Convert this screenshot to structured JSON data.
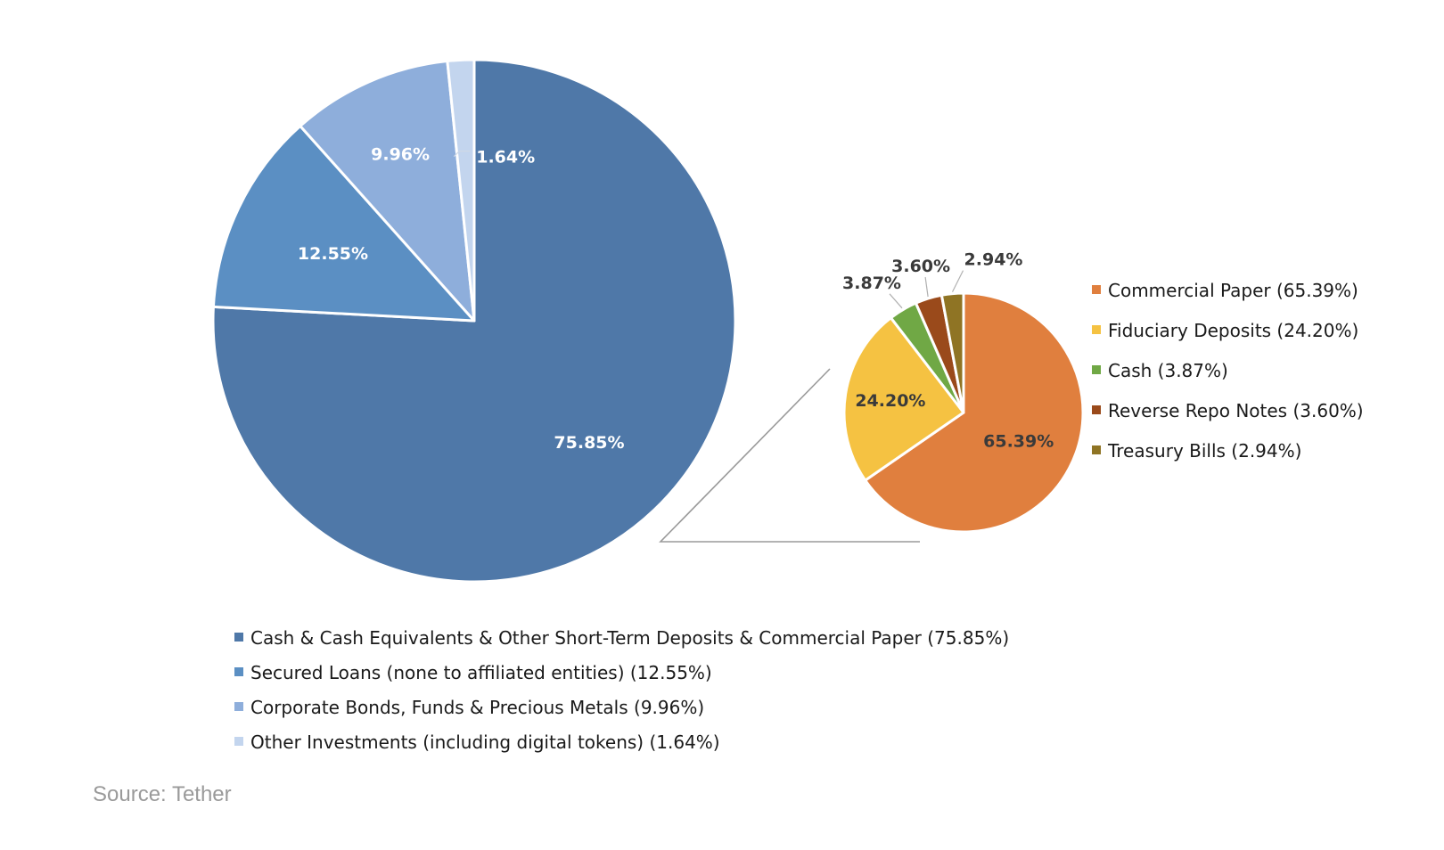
{
  "chart_data": [
    {
      "type": "pie",
      "title": "",
      "categories": [
        "Cash & Cash Equivalents & Other Short-Term Deposits & Commercial Paper",
        "Secured Loans (none to affiliated entities)",
        "Corporate Bonds, Funds & Precious Metals",
        "Other Investments (including digital tokens)"
      ],
      "values": [
        75.85,
        12.55,
        9.96,
        1.64
      ],
      "slice_labels": [
        "75.85%",
        "12.55%",
        "9.96%",
        "1.64%"
      ],
      "legend_entries": [
        "Cash & Cash Equivalents & Other Short-Term Deposits & Commercial Paper (75.85%)",
        "Secured Loans (none to affiliated entities) (12.55%)",
        "Corporate Bonds, Funds & Precious Metals (9.96%)",
        "Other Investments (including digital tokens) (1.64%)"
      ],
      "colors": [
        "#4f78a8",
        "#5b8fc3",
        "#8eaedb",
        "#c3d5ee"
      ],
      "legend_position": "bottom"
    },
    {
      "type": "pie",
      "title": "",
      "categories": [
        "Commercial Paper",
        "Fiduciary Deposits",
        "Cash",
        "Reverse Repo Notes",
        "Treasury Bills"
      ],
      "values": [
        65.39,
        24.2,
        3.87,
        3.6,
        2.94
      ],
      "slice_labels": [
        "65.39%",
        "24.20%",
        "3.87%",
        "3.60%",
        "2.94%"
      ],
      "legend_entries": [
        "Commercial Paper (65.39%)",
        "Fiduciary Deposits (24.20%)",
        "Cash (3.87%)",
        "Reverse Repo Notes (3.60%)",
        "Treasury Bills (2.94%)"
      ],
      "colors": [
        "#e07f3e",
        "#f5c242",
        "#70a845",
        "#9a4a1b",
        "#8f7424"
      ],
      "legend_position": "right"
    }
  ],
  "source": "Source: Tether"
}
